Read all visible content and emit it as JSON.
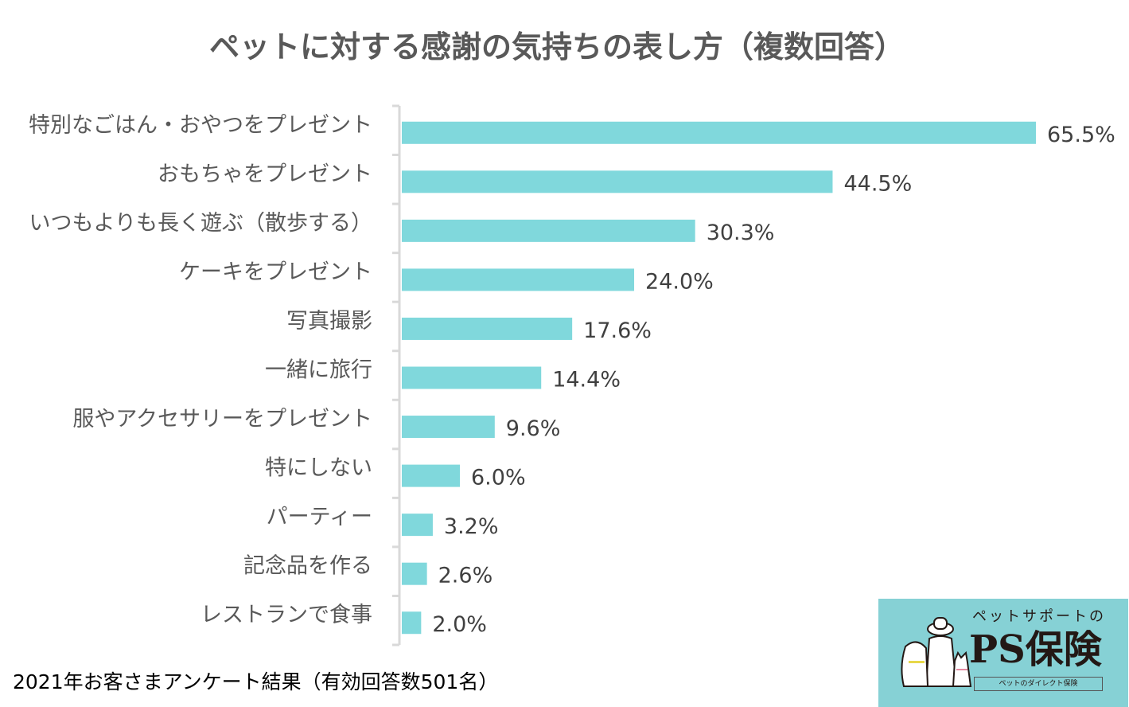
{
  "chart_data": {
    "type": "bar",
    "orientation": "horizontal",
    "title": "ペットに対する感謝の気持ちの表し方（複数回答）",
    "categories": [
      "特別なごはん・おやつをプレゼント",
      "おもちゃをプレゼント",
      "いつもよりも長く遊ぶ（散歩する）",
      "ケーキをプレゼント",
      "写真撮影",
      "一緒に旅行",
      "服やアクセサリーをプレゼント",
      "特にしない",
      "パーティー",
      "記念品を作る",
      "レストランで食事"
    ],
    "values": [
      65.5,
      44.5,
      30.3,
      24.0,
      17.6,
      14.4,
      9.6,
      6.0,
      3.2,
      2.6,
      2.0
    ],
    "value_labels": [
      "65.5%",
      "44.5%",
      "30.3%",
      "24.0%",
      "17.6%",
      "14.4%",
      "9.6%",
      "6.0%",
      "3.2%",
      "2.6%",
      "2.0%"
    ],
    "unit": "%",
    "xlim": [
      0,
      65.5
    ],
    "grid": false,
    "bar_color": "#80D8DC"
  },
  "footnote": "2021年お客さまアンケート結果（有効回答数501名）",
  "logo": {
    "sub": "ペットサポートの",
    "main": "PS保険",
    "tag": "ペットのダイレクト保険",
    "bg_color": "#86D1D5"
  }
}
